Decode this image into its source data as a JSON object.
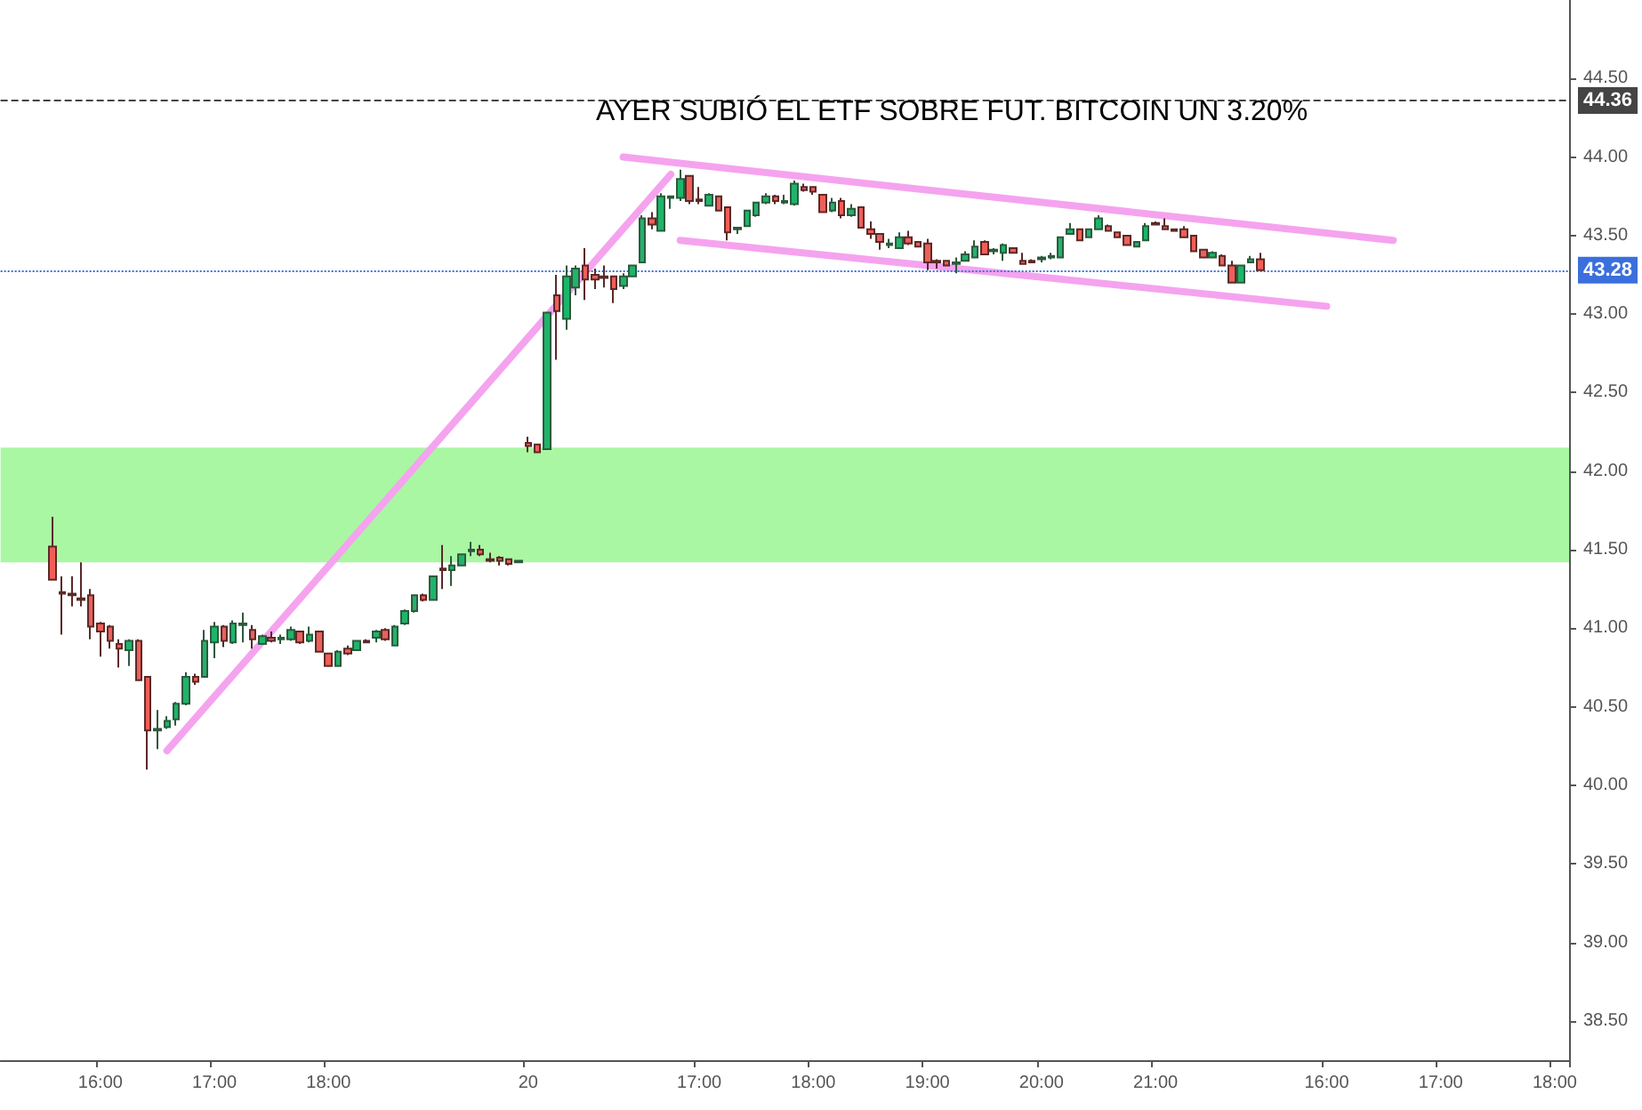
{
  "chart_data": {
    "type": "candlestick",
    "title": "AYER SUBIÓ EL ETF SOBRE FUT. BITCOIN UN 3.20%",
    "categories": [
      null,
      null,
      null,
      null,
      null,
      null,
      null,
      null,
      null,
      null,
      "16:00",
      null,
      null,
      null,
      null,
      null,
      null,
      null,
      null,
      null,
      null,
      null,
      "17:00",
      null,
      null,
      null,
      null,
      null,
      null,
      null,
      null,
      null,
      null,
      null,
      "18:00",
      null,
      null,
      null,
      null,
      null,
      null,
      null,
      null,
      null,
      null,
      null,
      null,
      null,
      null,
      null,
      null,
      null,
      null,
      null,
      null,
      "20",
      null,
      null,
      null,
      null,
      null,
      null,
      null,
      null,
      null,
      null,
      null,
      null,
      null,
      null,
      null,
      null,
      null,
      "17:00",
      null,
      null,
      null,
      null,
      null,
      null,
      null,
      null,
      null,
      null,
      null,
      "18:00",
      null,
      null,
      null,
      null,
      null,
      null,
      null,
      null,
      null,
      null,
      null,
      "19:00",
      null,
      null,
      null,
      null,
      null,
      null,
      null,
      null,
      null,
      null,
      null,
      "20:00",
      null,
      null,
      null,
      null,
      null,
      null,
      null,
      null,
      null,
      null,
      null,
      "21:00",
      null,
      null,
      null,
      null,
      null,
      null,
      null,
      null,
      null,
      null,
      null,
      null,
      null,
      null,
      null,
      null,
      null,
      "16:00",
      null,
      null,
      null,
      null,
      null,
      null,
      null,
      null,
      null,
      null,
      null,
      "17:00",
      null,
      null,
      null,
      null,
      null,
      null,
      null,
      null,
      null,
      null,
      null,
      "18:00",
      null
    ],
    "series": [
      {
        "ohlc": [
          null,
          null,
          null,
          null,
          null,
          [
            41.52,
            41.71,
            41.31,
            41.31
          ],
          [
            41.23,
            41.33,
            40.96,
            41.22
          ],
          [
            41.22,
            41.33,
            41.14,
            41.21
          ],
          [
            41.19,
            41.42,
            41.14,
            41.18
          ],
          [
            41.21,
            41.25,
            40.93,
            41.01
          ],
          [
            41.03,
            41.04,
            40.82,
            40.98
          ],
          [
            41.01,
            41.02,
            40.87,
            40.92
          ],
          [
            40.9,
            40.93,
            40.75,
            40.87
          ],
          [
            40.86,
            40.93,
            40.76,
            40.92
          ],
          [
            40.92,
            40.93,
            40.67,
            40.67
          ],
          [
            40.69,
            40.69,
            40.1,
            40.35
          ],
          [
            40.35,
            40.48,
            40.23,
            40.36
          ],
          [
            40.37,
            40.44,
            40.36,
            40.41
          ],
          [
            40.42,
            40.53,
            40.38,
            40.52
          ],
          [
            40.52,
            40.72,
            40.51,
            40.69
          ],
          [
            40.69,
            40.71,
            40.64,
            40.66
          ],
          [
            40.69,
            40.99,
            40.69,
            40.92
          ],
          [
            40.91,
            41.04,
            40.81,
            41.01
          ],
          [
            41.01,
            41.02,
            40.88,
            40.92
          ],
          [
            40.91,
            41.05,
            40.9,
            41.03
          ],
          [
            41.02,
            41.1,
            40.91,
            41.03
          ],
          [
            40.99,
            41.02,
            40.87,
            40.93
          ],
          [
            40.9,
            40.96,
            40.9,
            40.95
          ],
          [
            40.94,
            40.98,
            40.91,
            40.92
          ],
          [
            40.93,
            40.96,
            40.9,
            40.94
          ],
          [
            40.93,
            41.01,
            40.92,
            40.99
          ],
          [
            40.98,
            40.98,
            40.9,
            40.91
          ],
          [
            40.92,
            41.01,
            40.91,
            40.96
          ],
          [
            40.98,
            40.98,
            40.85,
            40.85
          ],
          [
            40.84,
            40.84,
            40.76,
            40.76
          ],
          [
            40.76,
            40.86,
            40.76,
            40.85
          ],
          [
            40.87,
            40.89,
            40.83,
            40.84
          ],
          [
            40.86,
            40.92,
            40.86,
            40.92
          ],
          [
            40.92,
            40.93,
            40.91,
            40.91
          ],
          [
            40.94,
            40.99,
            40.91,
            40.98
          ],
          [
            40.99,
            41.0,
            40.92,
            40.93
          ],
          [
            40.89,
            41.02,
            40.89,
            41.01
          ],
          [
            41.03,
            41.12,
            41.02,
            41.11
          ],
          [
            41.11,
            41.21,
            41.1,
            41.21
          ],
          [
            41.21,
            41.22,
            41.17,
            41.18
          ],
          [
            41.18,
            41.33,
            41.18,
            41.33
          ],
          [
            41.38,
            41.53,
            41.25,
            41.37
          ],
          [
            41.37,
            41.46,
            41.27,
            41.4
          ],
          [
            41.4,
            41.47,
            41.4,
            41.47
          ],
          [
            41.49,
            41.55,
            41.46,
            41.5
          ],
          [
            41.5,
            41.53,
            41.46,
            41.47
          ],
          [
            41.44,
            41.48,
            41.42,
            41.43
          ],
          [
            41.45,
            41.46,
            41.4,
            41.43
          ],
          [
            41.44,
            41.44,
            41.4,
            41.41
          ],
          [
            41.42,
            41.43,
            41.42,
            41.43
          ],
          [
            42.18,
            42.22,
            42.12,
            42.16
          ],
          [
            42.17,
            42.17,
            42.12,
            42.12
          ],
          [
            42.14,
            43.01,
            42.14,
            43.01
          ],
          [
            43.12,
            43.25,
            42.71,
            43.02
          ],
          [
            42.97,
            43.31,
            42.9,
            43.24
          ],
          [
            43.17,
            43.31,
            43.12,
            43.29
          ],
          [
            43.31,
            43.42,
            43.09,
            43.22
          ],
          [
            43.25,
            43.29,
            43.16,
            43.22
          ],
          [
            43.24,
            43.31,
            43.17,
            43.23
          ],
          [
            43.24,
            43.24,
            43.07,
            43.16
          ],
          [
            43.18,
            43.26,
            43.16,
            43.24
          ],
          [
            43.24,
            43.31,
            43.24,
            43.31
          ],
          [
            43.33,
            43.63,
            43.33,
            43.61
          ],
          [
            43.61,
            43.65,
            43.54,
            43.57
          ],
          [
            43.53,
            43.77,
            43.53,
            43.75
          ],
          [
            43.74,
            43.75,
            43.67,
            43.75
          ],
          [
            43.74,
            43.92,
            43.72,
            43.86
          ],
          [
            43.88,
            43.88,
            43.7,
            43.72
          ],
          [
            43.73,
            43.81,
            43.7,
            43.72
          ],
          [
            43.69,
            43.77,
            43.69,
            43.76
          ],
          [
            43.75,
            43.75,
            43.66,
            43.66
          ],
          [
            43.68,
            43.68,
            43.47,
            43.52
          ],
          [
            43.54,
            43.55,
            43.51,
            43.55
          ],
          [
            43.56,
            43.66,
            43.56,
            43.66
          ],
          [
            43.63,
            43.71,
            43.62,
            43.71
          ],
          [
            43.71,
            43.77,
            43.7,
            43.75
          ],
          [
            43.75,
            43.76,
            43.7,
            43.72
          ],
          [
            43.71,
            43.76,
            43.7,
            43.72
          ],
          [
            43.7,
            43.85,
            43.69,
            43.83
          ],
          [
            43.81,
            43.83,
            43.78,
            43.79
          ],
          [
            43.81,
            43.81,
            43.76,
            43.78
          ],
          [
            43.76,
            43.76,
            43.65,
            43.65
          ],
          [
            43.66,
            43.74,
            43.65,
            43.71
          ],
          [
            43.72,
            43.74,
            43.61,
            43.63
          ],
          [
            43.63,
            43.7,
            43.62,
            43.67
          ],
          [
            43.68,
            43.68,
            43.55,
            43.55
          ],
          [
            43.54,
            43.59,
            43.48,
            43.51
          ],
          [
            43.51,
            43.51,
            43.41,
            43.46
          ],
          [
            43.44,
            43.48,
            43.42,
            43.45
          ],
          [
            43.42,
            43.52,
            43.42,
            43.49
          ],
          [
            43.49,
            43.53,
            43.44,
            43.45
          ],
          [
            43.46,
            43.46,
            43.43,
            43.43
          ],
          [
            43.45,
            43.48,
            43.28,
            43.33
          ],
          [
            43.34,
            43.35,
            43.29,
            43.33
          ],
          [
            43.34,
            43.34,
            43.31,
            43.31
          ],
          [
            43.32,
            43.36,
            43.26,
            43.33
          ],
          [
            43.34,
            43.4,
            43.34,
            43.38
          ],
          [
            43.36,
            43.47,
            43.36,
            43.43
          ],
          [
            43.46,
            43.47,
            43.38,
            43.38
          ],
          [
            43.4,
            43.42,
            43.38,
            43.41
          ],
          [
            43.39,
            43.45,
            43.34,
            43.44
          ],
          [
            43.42,
            43.42,
            43.39,
            43.39
          ],
          [
            43.34,
            43.39,
            43.32,
            43.32
          ],
          [
            43.34,
            43.35,
            43.33,
            43.33
          ],
          [
            43.35,
            43.37,
            43.33,
            43.36
          ],
          [
            43.36,
            43.39,
            43.35,
            43.37
          ],
          [
            43.36,
            43.49,
            43.36,
            43.49
          ],
          [
            43.51,
            43.58,
            43.51,
            43.54
          ],
          [
            43.54,
            43.54,
            43.47,
            43.47
          ],
          [
            43.49,
            43.54,
            43.49,
            43.54
          ],
          [
            43.54,
            43.63,
            43.54,
            43.61
          ],
          [
            43.56,
            43.57,
            43.53,
            43.53
          ],
          [
            43.52,
            43.52,
            43.49,
            43.49
          ],
          [
            43.5,
            43.5,
            43.44,
            43.44
          ],
          [
            43.43,
            43.46,
            43.43,
            43.46
          ],
          [
            43.47,
            43.58,
            43.47,
            43.56
          ],
          [
            43.58,
            43.59,
            43.57,
            43.57
          ],
          [
            43.56,
            43.61,
            43.54,
            43.54
          ],
          [
            43.54,
            43.54,
            43.53,
            43.53
          ],
          [
            43.54,
            43.56,
            43.49,
            43.49
          ],
          [
            43.5,
            43.5,
            43.4,
            43.4
          ],
          [
            43.41,
            43.41,
            43.36,
            43.36
          ],
          [
            43.36,
            43.4,
            43.36,
            43.39
          ],
          [
            43.37,
            43.38,
            43.31,
            43.31
          ],
          [
            43.31,
            43.34,
            43.2,
            43.2
          ],
          [
            43.2,
            43.31,
            43.2,
            43.31
          ],
          [
            43.33,
            43.37,
            43.33,
            43.35
          ],
          [
            43.35,
            43.39,
            43.28,
            43.28
          ],
          null,
          null,
          null,
          null,
          null,
          null,
          null,
          null,
          null,
          null,
          null,
          null,
          null,
          null,
          null,
          null,
          null,
          null,
          null,
          null,
          null,
          null,
          null,
          null,
          null,
          null,
          null,
          null,
          null,
          null,
          null,
          null
        ]
      },
      {
        "type": "line",
        "color": "#f5a3ef",
        "values": [
          null,
          null,
          null,
          null,
          null,
          null,
          null,
          null,
          null,
          null,
          null,
          null,
          null,
          null,
          null,
          null,
          null,
          40.22,
          null,
          null,
          null,
          null,
          null,
          null,
          null,
          null,
          null,
          null,
          null,
          null,
          null,
          null,
          null,
          null,
          null,
          null,
          null,
          null,
          null,
          null,
          null,
          null,
          null,
          null,
          null,
          null,
          null,
          null,
          null,
          null,
          null,
          null,
          null,
          null,
          null,
          null,
          null,
          null,
          null,
          null,
          null,
          null,
          null,
          null,
          null,
          null,
          null,
          null,
          null,
          null,
          43.89,
          null,
          null,
          null,
          null,
          null,
          null,
          null,
          null,
          null,
          null,
          null,
          null,
          null,
          null,
          null,
          null,
          null,
          null,
          null,
          null,
          null,
          null,
          null,
          null,
          null,
          null,
          null,
          null,
          null,
          null,
          null,
          null,
          null,
          null,
          null,
          null,
          null,
          null,
          null,
          null,
          null,
          null,
          null,
          null,
          null,
          null,
          null,
          null,
          null,
          null,
          null,
          null,
          null,
          null,
          null,
          null,
          null,
          null,
          null,
          null,
          null,
          null,
          null,
          null,
          null,
          null,
          null,
          null,
          null,
          null,
          null,
          null,
          null,
          null,
          null,
          null,
          null,
          null,
          null,
          null,
          null,
          null,
          null,
          null,
          null,
          null,
          null,
          null,
          null,
          null,
          null,
          null,
          null,
          null
        ]
      },
      {
        "type": "line",
        "color": "#f5a3ef",
        "values": [
          null,
          null,
          null,
          null,
          null,
          null,
          null,
          null,
          null,
          null,
          null,
          null,
          null,
          null,
          null,
          null,
          null,
          null,
          null,
          null,
          null,
          null,
          null,
          null,
          null,
          null,
          null,
          null,
          null,
          null,
          null,
          null,
          null,
          null,
          null,
          null,
          null,
          null,
          null,
          null,
          null,
          null,
          null,
          null,
          null,
          null,
          null,
          null,
          null,
          null,
          null,
          null,
          null,
          null,
          null,
          null,
          null,
          null,
          null,
          null,
          null,
          null,
          null,
          null,
          null,
          44.0,
          null,
          null,
          null,
          null,
          null,
          null,
          null,
          null,
          null,
          null,
          null,
          null,
          null,
          null,
          null,
          null,
          null,
          null,
          null,
          null,
          null,
          null,
          null,
          null,
          null,
          null,
          null,
          null,
          null,
          null,
          null,
          null,
          null,
          null,
          null,
          null,
          null,
          null,
          null,
          null,
          null,
          null,
          null,
          null,
          null,
          null,
          null,
          null,
          null,
          null,
          null,
          null,
          null,
          null,
          null,
          null,
          null,
          null,
          null,
          null,
          null,
          null,
          null,
          null,
          null,
          null,
          null,
          null,
          null,
          null,
          null,
          null,
          null,
          null,
          null,
          null,
          null,
          null,
          null,
          null,
          43.47,
          null,
          null,
          null,
          null,
          null,
          null,
          null,
          null,
          null,
          null,
          null,
          null,
          null,
          null,
          null,
          null,
          null,
          null
        ]
      },
      {
        "type": "line",
        "color": "#f5a3ef",
        "values": [
          null,
          null,
          null,
          null,
          null,
          null,
          null,
          null,
          null,
          null,
          null,
          null,
          null,
          null,
          null,
          null,
          null,
          null,
          null,
          null,
          null,
          null,
          null,
          null,
          null,
          null,
          null,
          null,
          null,
          null,
          null,
          null,
          null,
          null,
          null,
          null,
          null,
          null,
          null,
          null,
          null,
          null,
          null,
          null,
          null,
          null,
          null,
          null,
          null,
          null,
          null,
          null,
          null,
          null,
          null,
          null,
          null,
          null,
          null,
          null,
          null,
          null,
          null,
          null,
          null,
          null,
          null,
          null,
          null,
          null,
          null,
          43.47,
          null,
          null,
          null,
          null,
          null,
          null,
          null,
          null,
          null,
          null,
          null,
          null,
          null,
          null,
          null,
          null,
          null,
          null,
          null,
          null,
          null,
          null,
          null,
          null,
          null,
          null,
          null,
          null,
          null,
          null,
          null,
          null,
          null,
          null,
          null,
          null,
          null,
          null,
          null,
          null,
          null,
          null,
          null,
          null,
          null,
          null,
          null,
          null,
          null,
          null,
          null,
          null,
          null,
          null,
          null,
          null,
          null,
          null,
          null,
          null,
          null,
          null,
          null,
          null,
          null,
          null,
          null,
          43.05,
          null,
          null,
          null,
          null,
          null,
          null,
          null,
          null,
          null,
          null,
          null,
          null,
          null,
          null,
          null,
          null,
          null,
          null,
          null,
          null,
          null,
          null,
          null,
          null,
          null
        ]
      }
    ],
    "ylim": [
      38.25,
      45.0
    ],
    "yticks": [
      {
        "value": 38.5,
        "label": "38.50"
      },
      {
        "value": 39,
        "label": "39.00"
      },
      {
        "value": 39.5,
        "label": "39.50"
      },
      {
        "value": 40,
        "label": "40.00"
      },
      {
        "value": 40.5,
        "label": "40.50"
      },
      {
        "value": 41,
        "label": "41.00"
      },
      {
        "value": 41.5,
        "label": "41.50"
      },
      {
        "value": 42,
        "label": "42.00"
      },
      {
        "value": 42.5,
        "label": "42.50"
      },
      {
        "value": 43,
        "label": "43.00"
      },
      {
        "value": 43.5,
        "label": "43.50"
      },
      {
        "value": 44,
        "label": "44.00"
      },
      {
        "value": 44.5,
        "label": "44.50"
      }
    ],
    "ref_lines": [
      {
        "axis": "y",
        "value": 44.36,
        "label": "44.36",
        "color": "#444444",
        "line_style": "dashed"
      },
      {
        "axis": "y",
        "value": 43.28,
        "label": "43.28",
        "color": "#3a6fdc",
        "line_style": "dotted"
      }
    ],
    "bands": [
      {
        "axis": "y",
        "from": 41.42,
        "to": 42.15,
        "color": "#a9f7a3"
      }
    ],
    "grid": false
  }
}
